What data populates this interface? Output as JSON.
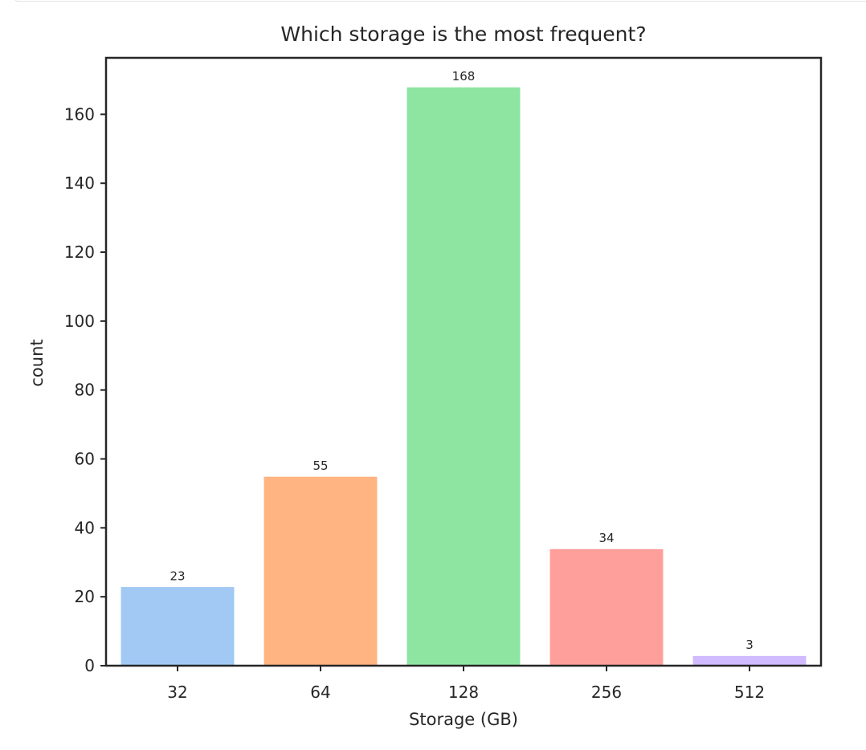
{
  "chart_data": {
    "type": "bar",
    "title": "Which storage is the most frequent?",
    "xlabel": "Storage (GB)",
    "ylabel": "count",
    "categories": [
      "32",
      "64",
      "128",
      "256",
      "512"
    ],
    "values": [
      23,
      55,
      168,
      34,
      3
    ],
    "data_labels": [
      "23",
      "55",
      "168",
      "34",
      "3"
    ],
    "colors": [
      "#a1c9f4",
      "#ffb482",
      "#8de5a1",
      "#ff9f9b",
      "#d0bbff"
    ],
    "ylim": [
      0,
      176.4
    ],
    "yticks": [
      0,
      20,
      40,
      60,
      80,
      100,
      120,
      140,
      160
    ],
    "grid": false,
    "legend": "none"
  }
}
